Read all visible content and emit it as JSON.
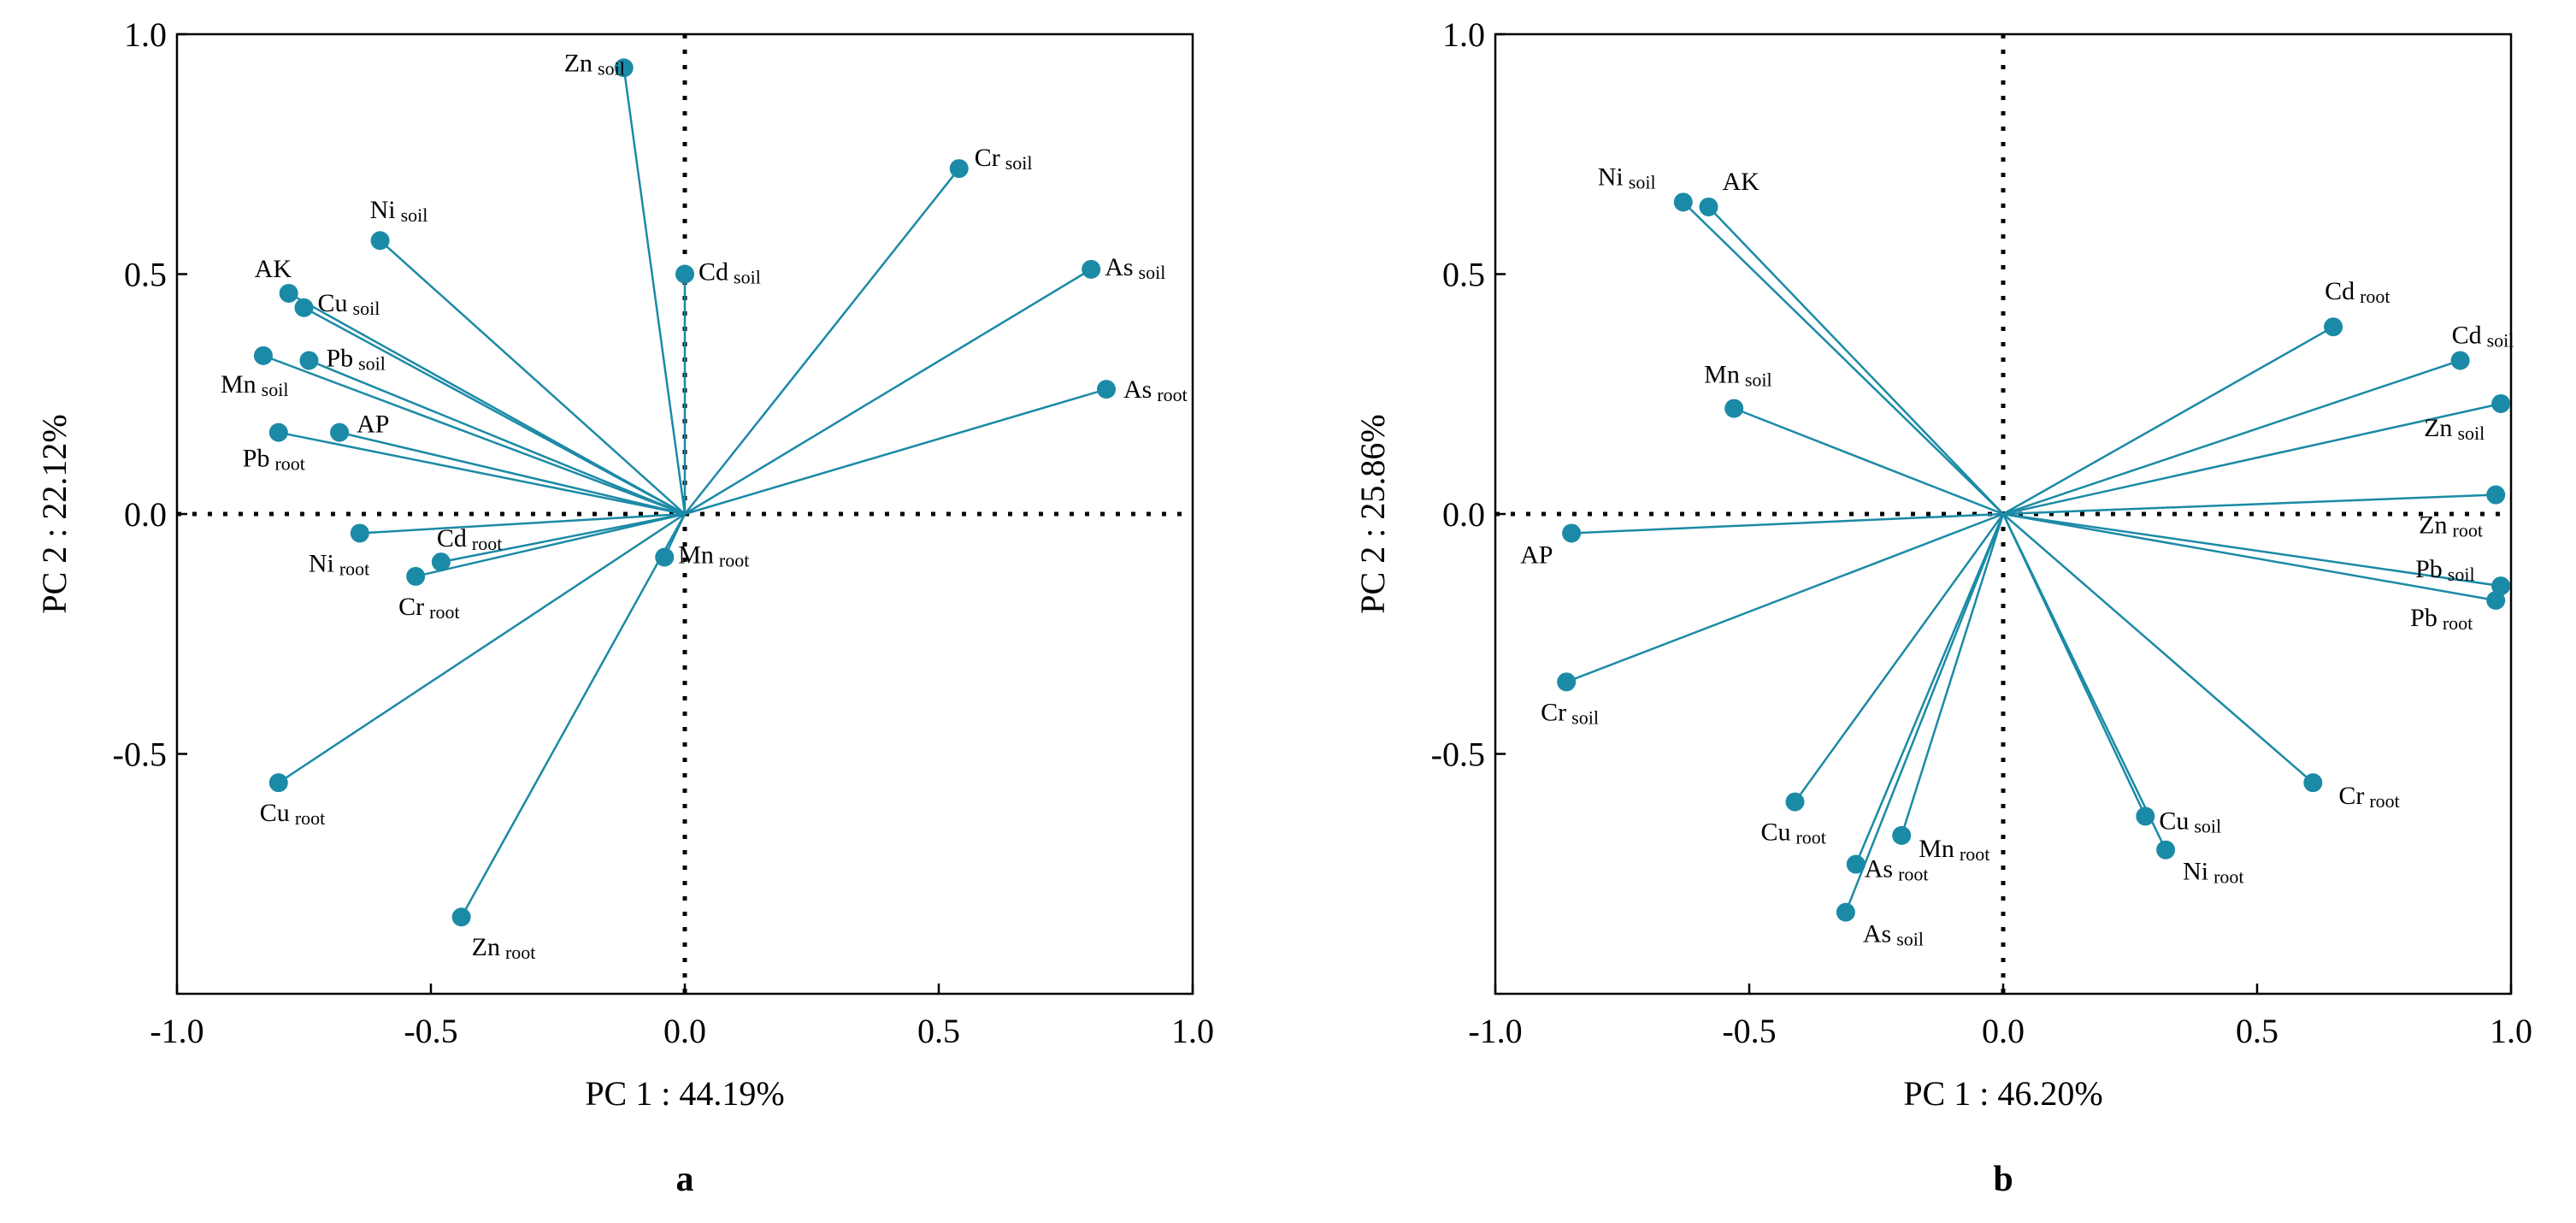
{
  "chart_data": [
    {
      "type": "scatter",
      "panel": "a",
      "xlabel": "PC 1 : 44.19%",
      "ylabel": "PC 2 : 22.12%",
      "xlim": [
        -1.0,
        1.0
      ],
      "ylim": [
        -1.0,
        1.0
      ],
      "xticks": [
        "-1.0",
        "-0.5",
        "0.0",
        "0.5",
        "1.0"
      ],
      "yticks": [
        "1.0",
        "0.5",
        "0.0",
        "-0.5"
      ],
      "color": "#1b8aa6",
      "points": [
        {
          "name": "Zn",
          "sub": "soil",
          "x": -0.12,
          "y": 0.93
        },
        {
          "name": "Cr",
          "sub": "soil",
          "x": 0.54,
          "y": 0.72
        },
        {
          "name": "Ni",
          "sub": "soil",
          "x": -0.6,
          "y": 0.57
        },
        {
          "name": "Cd",
          "sub": "soil",
          "x": 0.0,
          "y": 0.5
        },
        {
          "name": "As",
          "sub": "soil",
          "x": 0.8,
          "y": 0.51
        },
        {
          "name": "AK",
          "sub": "",
          "x": -0.78,
          "y": 0.46
        },
        {
          "name": "Cu",
          "sub": "soil",
          "x": -0.75,
          "y": 0.43
        },
        {
          "name": "Pb",
          "sub": "soil",
          "x": -0.74,
          "y": 0.32
        },
        {
          "name": "Mn",
          "sub": "soil",
          "x": -0.83,
          "y": 0.33
        },
        {
          "name": "As",
          "sub": "root",
          "x": 0.83,
          "y": 0.26
        },
        {
          "name": "Pb",
          "sub": "root",
          "x": -0.8,
          "y": 0.17
        },
        {
          "name": "AP",
          "sub": "",
          "x": -0.68,
          "y": 0.17
        },
        {
          "name": "Ni",
          "sub": "root",
          "x": -0.64,
          "y": -0.04
        },
        {
          "name": "Cd",
          "sub": "root",
          "x": -0.48,
          "y": -0.1
        },
        {
          "name": "Cr",
          "sub": "root",
          "x": -0.53,
          "y": -0.13
        },
        {
          "name": "Mn",
          "sub": "root",
          "x": -0.04,
          "y": -0.09
        },
        {
          "name": "Cu",
          "sub": "root",
          "x": -0.8,
          "y": -0.56
        },
        {
          "name": "Zn",
          "sub": "root",
          "x": -0.44,
          "y": -0.84
        }
      ],
      "caption": "a"
    },
    {
      "type": "scatter",
      "panel": "b",
      "xlabel": "PC 1 : 46.20%",
      "ylabel": "PC 2 : 25.86%",
      "xlim": [
        -1.0,
        1.0
      ],
      "ylim": [
        -1.0,
        1.0
      ],
      "xticks": [
        "-1.0",
        "-0.5",
        "0.0",
        "0.5",
        "1.0"
      ],
      "yticks": [
        "1.0",
        "0.5",
        "0.0",
        "-0.5"
      ],
      "color": "#1b8aa6",
      "points": [
        {
          "name": "Ni",
          "sub": "soil",
          "x": -0.63,
          "y": 0.65
        },
        {
          "name": "AK",
          "sub": "",
          "x": -0.58,
          "y": 0.64
        },
        {
          "name": "Cd",
          "sub": "root",
          "x": 0.65,
          "y": 0.39
        },
        {
          "name": "Cd",
          "sub": "soil",
          "x": 0.9,
          "y": 0.32
        },
        {
          "name": "Zn",
          "sub": "soil",
          "x": 0.98,
          "y": 0.23
        },
        {
          "name": "Mn",
          "sub": "soil",
          "x": -0.53,
          "y": 0.22
        },
        {
          "name": "Zn",
          "sub": "root",
          "x": 0.97,
          "y": 0.04
        },
        {
          "name": "AP",
          "sub": "",
          "x": -0.85,
          "y": -0.04
        },
        {
          "name": "Pb",
          "sub": "soil",
          "x": 0.98,
          "y": -0.15
        },
        {
          "name": "Pb",
          "sub": "root",
          "x": 0.97,
          "y": -0.18
        },
        {
          "name": "Cr",
          "sub": "soil",
          "x": -0.86,
          "y": -0.35
        },
        {
          "name": "Cr",
          "sub": "root",
          "x": 0.61,
          "y": -0.56
        },
        {
          "name": "Cu",
          "sub": "root",
          "x": -0.41,
          "y": -0.6
        },
        {
          "name": "Cu",
          "sub": "soil",
          "x": 0.28,
          "y": -0.63
        },
        {
          "name": "Mn",
          "sub": "root",
          "x": -0.2,
          "y": -0.67
        },
        {
          "name": "Ni",
          "sub": "root",
          "x": 0.32,
          "y": -0.7
        },
        {
          "name": "As",
          "sub": "root",
          "x": -0.29,
          "y": -0.73
        },
        {
          "name": "As",
          "sub": "soil",
          "x": -0.31,
          "y": -0.83
        }
      ],
      "caption": "b"
    }
  ]
}
